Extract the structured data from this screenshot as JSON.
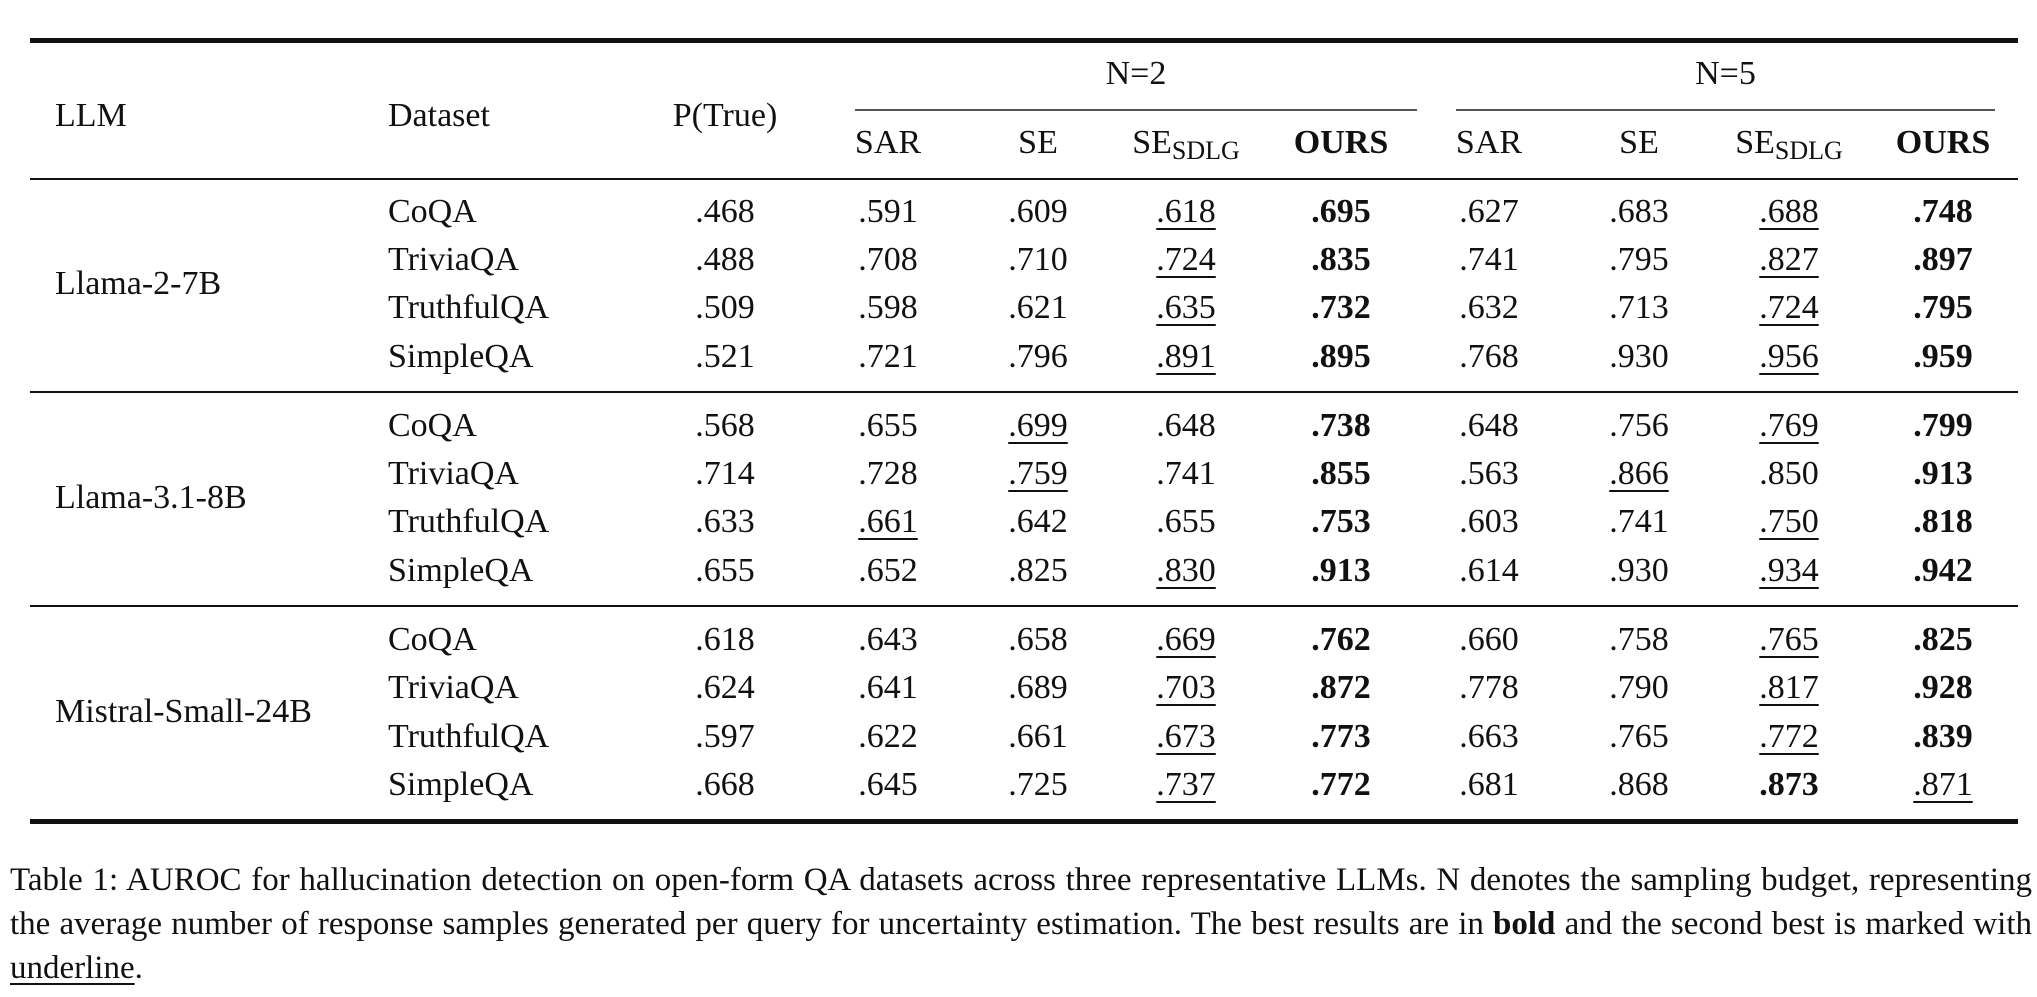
{
  "table": {
    "header": {
      "llm": "LLM",
      "dataset": "Dataset",
      "ptrue": "P(True)",
      "groups": [
        {
          "label": "N=2",
          "columns": [
            {
              "text": "SAR"
            },
            {
              "text": "SE"
            },
            {
              "text": "SE",
              "sub": "SDLG"
            },
            {
              "text": "OURS",
              "bold": true
            }
          ]
        },
        {
          "label": "N=5",
          "columns": [
            {
              "text": "SAR"
            },
            {
              "text": "SE"
            },
            {
              "text": "SE",
              "sub": "SDLG"
            },
            {
              "text": "OURS",
              "bold": true
            }
          ]
        }
      ]
    },
    "groups": [
      {
        "llm": "Llama-2-7B",
        "rows": [
          {
            "dataset": "CoQA",
            "cells": [
              ".468",
              ".591",
              ".609",
              ".618",
              ".695",
              ".627",
              ".683",
              ".688",
              ".748"
            ],
            "bold": [
              4,
              8
            ],
            "underline": [
              3,
              7
            ]
          },
          {
            "dataset": "TriviaQA",
            "cells": [
              ".488",
              ".708",
              ".710",
              ".724",
              ".835",
              ".741",
              ".795",
              ".827",
              ".897"
            ],
            "bold": [
              4,
              8
            ],
            "underline": [
              3,
              7
            ]
          },
          {
            "dataset": "TruthfulQA",
            "cells": [
              ".509",
              ".598",
              ".621",
              ".635",
              ".732",
              ".632",
              ".713",
              ".724",
              ".795"
            ],
            "bold": [
              4,
              8
            ],
            "underline": [
              3,
              7
            ]
          },
          {
            "dataset": "SimpleQA",
            "cells": [
              ".521",
              ".721",
              ".796",
              ".891",
              ".895",
              ".768",
              ".930",
              ".956",
              ".959"
            ],
            "bold": [
              4,
              8
            ],
            "underline": [
              3,
              7
            ]
          }
        ]
      },
      {
        "llm": "Llama-3.1-8B",
        "rows": [
          {
            "dataset": "CoQA",
            "cells": [
              ".568",
              ".655",
              ".699",
              ".648",
              ".738",
              ".648",
              ".756",
              ".769",
              ".799"
            ],
            "bold": [
              4,
              8
            ],
            "underline": [
              2,
              7
            ]
          },
          {
            "dataset": "TriviaQA",
            "cells": [
              ".714",
              ".728",
              ".759",
              ".741",
              ".855",
              ".563",
              ".866",
              ".850",
              ".913"
            ],
            "bold": [
              4,
              8
            ],
            "underline": [
              2,
              6
            ]
          },
          {
            "dataset": "TruthfulQA",
            "cells": [
              ".633",
              ".661",
              ".642",
              ".655",
              ".753",
              ".603",
              ".741",
              ".750",
              ".818"
            ],
            "bold": [
              4,
              8
            ],
            "underline": [
              1,
              7
            ]
          },
          {
            "dataset": "SimpleQA",
            "cells": [
              ".655",
              ".652",
              ".825",
              ".830",
              ".913",
              ".614",
              ".930",
              ".934",
              ".942"
            ],
            "bold": [
              4,
              8
            ],
            "underline": [
              3,
              7
            ]
          }
        ]
      },
      {
        "llm": "Mistral-Small-24B",
        "rows": [
          {
            "dataset": "CoQA",
            "cells": [
              ".618",
              ".643",
              ".658",
              ".669",
              ".762",
              ".660",
              ".758",
              ".765",
              ".825"
            ],
            "bold": [
              4,
              8
            ],
            "underline": [
              3,
              7
            ]
          },
          {
            "dataset": "TriviaQA",
            "cells": [
              ".624",
              ".641",
              ".689",
              ".703",
              ".872",
              ".778",
              ".790",
              ".817",
              ".928"
            ],
            "bold": [
              4,
              8
            ],
            "underline": [
              3,
              7
            ]
          },
          {
            "dataset": "TruthfulQA",
            "cells": [
              ".597",
              ".622",
              ".661",
              ".673",
              ".773",
              ".663",
              ".765",
              ".772",
              ".839"
            ],
            "bold": [
              4,
              8
            ],
            "underline": [
              3,
              7
            ]
          },
          {
            "dataset": "SimpleQA",
            "cells": [
              ".668",
              ".645",
              ".725",
              ".737",
              ".772",
              ".681",
              ".868",
              ".873",
              ".871"
            ],
            "bold": [
              4,
              7
            ],
            "underline": [
              3,
              8
            ]
          }
        ]
      }
    ]
  },
  "caption": {
    "parts": [
      {
        "text": "Table 1: AUROC for hallucination detection on open-form QA datasets across three representative LLMs. N denotes the sampling budget, representing the average number of response samples generated per query for uncertainty estimation. The best results are in "
      },
      {
        "text": "bold",
        "bold": true
      },
      {
        "text": " and the second best is marked with "
      },
      {
        "text": "underline",
        "underline": true
      },
      {
        "text": "."
      }
    ]
  }
}
